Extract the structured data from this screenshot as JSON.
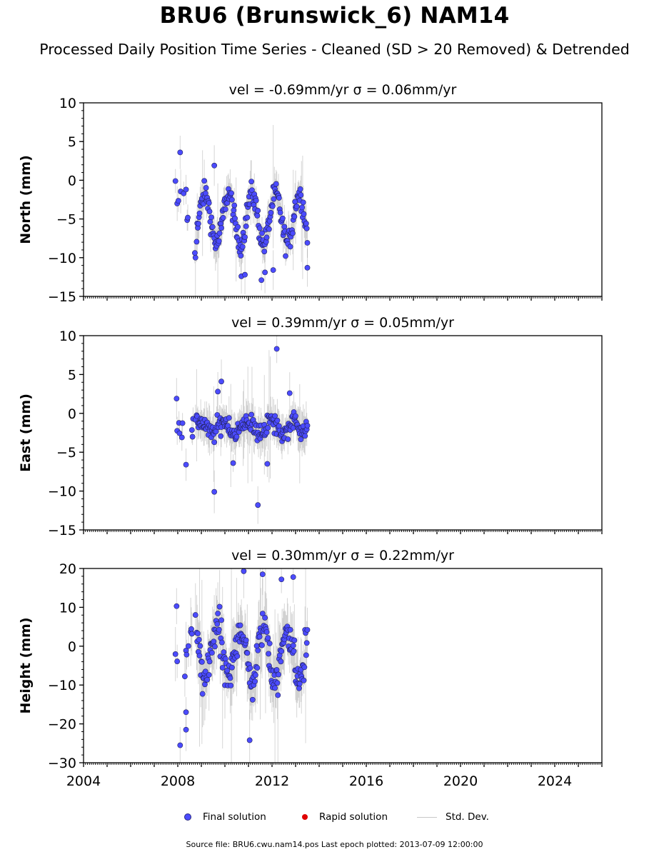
{
  "title": "BRU6 (Brunswick_6) NAM14",
  "subtitle": "Processed Daily Position Time Series - Cleaned (SD > 20 Removed) & Detrended",
  "legend": {
    "final": "Final solution",
    "rapid": "Rapid solution",
    "stddev": "Std. Dev.",
    "final_color": "#4b4bff",
    "rapid_color": "#e00000",
    "stddev_color": "#c8c8c8"
  },
  "footer": "Source file: BRU6.cwu.nam14.pos  Last epoch plotted: 2013-07-09 12:00:00",
  "chart_data": [
    {
      "type": "scatter",
      "title": "vel = -0.69mm/yr   σ = 0.06mm/yr",
      "ylabel": "North (mm)",
      "xlim": [
        2004,
        2026
      ],
      "ylim": [
        -15,
        10
      ],
      "yticks": [
        -15,
        -10,
        -5,
        0,
        5,
        10
      ],
      "xticks": [
        2004,
        2008,
        2012,
        2016,
        2020,
        2024
      ],
      "data_span": [
        2007.9,
        2013.52
      ],
      "seasonal": {
        "mean": -5.0,
        "amplitude": 3.2,
        "noise": 1.3,
        "phase": 0.1,
        "err": 1.6
      },
      "outliers": [
        [
          2007.9,
          -0.1
        ],
        [
          2008.1,
          3.6
        ],
        [
          2008.35,
          -1.2
        ],
        [
          2008.75,
          -10.0
        ],
        [
          2009.55,
          1.9
        ],
        [
          2010.7,
          -12.4
        ],
        [
          2010.85,
          -12.2
        ],
        [
          2011.55,
          -12.9
        ],
        [
          2011.7,
          -11.9
        ],
        [
          2012.05,
          -11.6
        ],
        [
          2013.5,
          -11.3
        ]
      ],
      "series": [
        {
          "name": "Final solution",
          "color": "#4b4bff"
        }
      ]
    },
    {
      "type": "scatter",
      "title": "vel = 0.39mm/yr   σ = 0.05mm/yr",
      "ylabel": "East (mm)",
      "xlim": [
        2004,
        2026
      ],
      "ylim": [
        -15,
        10
      ],
      "yticks": [
        -15,
        -10,
        -5,
        0,
        5,
        10
      ],
      "xticks": [
        2004,
        2008,
        2012,
        2016,
        2020,
        2024
      ],
      "data_span": [
        2007.9,
        2013.52
      ],
      "seasonal": {
        "mean": -1.8,
        "amplitude": 0.8,
        "noise": 1.1,
        "phase": 0.3,
        "err": 1.6
      },
      "outliers": [
        [
          2007.95,
          1.9
        ],
        [
          2008.35,
          -6.6
        ],
        [
          2009.55,
          -10.1
        ],
        [
          2009.85,
          4.1
        ],
        [
          2009.7,
          2.8
        ],
        [
          2010.35,
          -6.4
        ],
        [
          2011.4,
          -11.8
        ],
        [
          2011.8,
          -6.5
        ],
        [
          2012.2,
          8.3
        ],
        [
          2012.75,
          2.6
        ]
      ],
      "series": [
        {
          "name": "Final solution",
          "color": "#4b4bff"
        }
      ]
    },
    {
      "type": "scatter",
      "title": "vel = 0.30mm/yr   σ = 0.22mm/yr",
      "ylabel": "Height (mm)",
      "xlim": [
        2004,
        2026
      ],
      "ylim": [
        -30,
        20
      ],
      "yticks": [
        -30,
        -20,
        -10,
        0,
        10,
        20
      ],
      "xticks": [
        2004,
        2008,
        2012,
        2016,
        2020,
        2024
      ],
      "data_span": [
        2007.9,
        2013.52
      ],
      "seasonal": {
        "mean": -2.0,
        "amplitude": 7.0,
        "noise": 4.5,
        "phase": 0.6,
        "err": 5.5
      },
      "outliers": [
        [
          2007.95,
          10.3
        ],
        [
          2008.1,
          -25.5
        ],
        [
          2008.35,
          -17.0
        ],
        [
          2008.35,
          -21.5
        ],
        [
          2010.8,
          19.3
        ],
        [
          2011.05,
          -24.2
        ],
        [
          2011.6,
          18.5
        ],
        [
          2012.4,
          17.2
        ],
        [
          2012.9,
          17.8
        ]
      ],
      "series": [
        {
          "name": "Final solution",
          "color": "#4b4bff"
        }
      ]
    }
  ]
}
